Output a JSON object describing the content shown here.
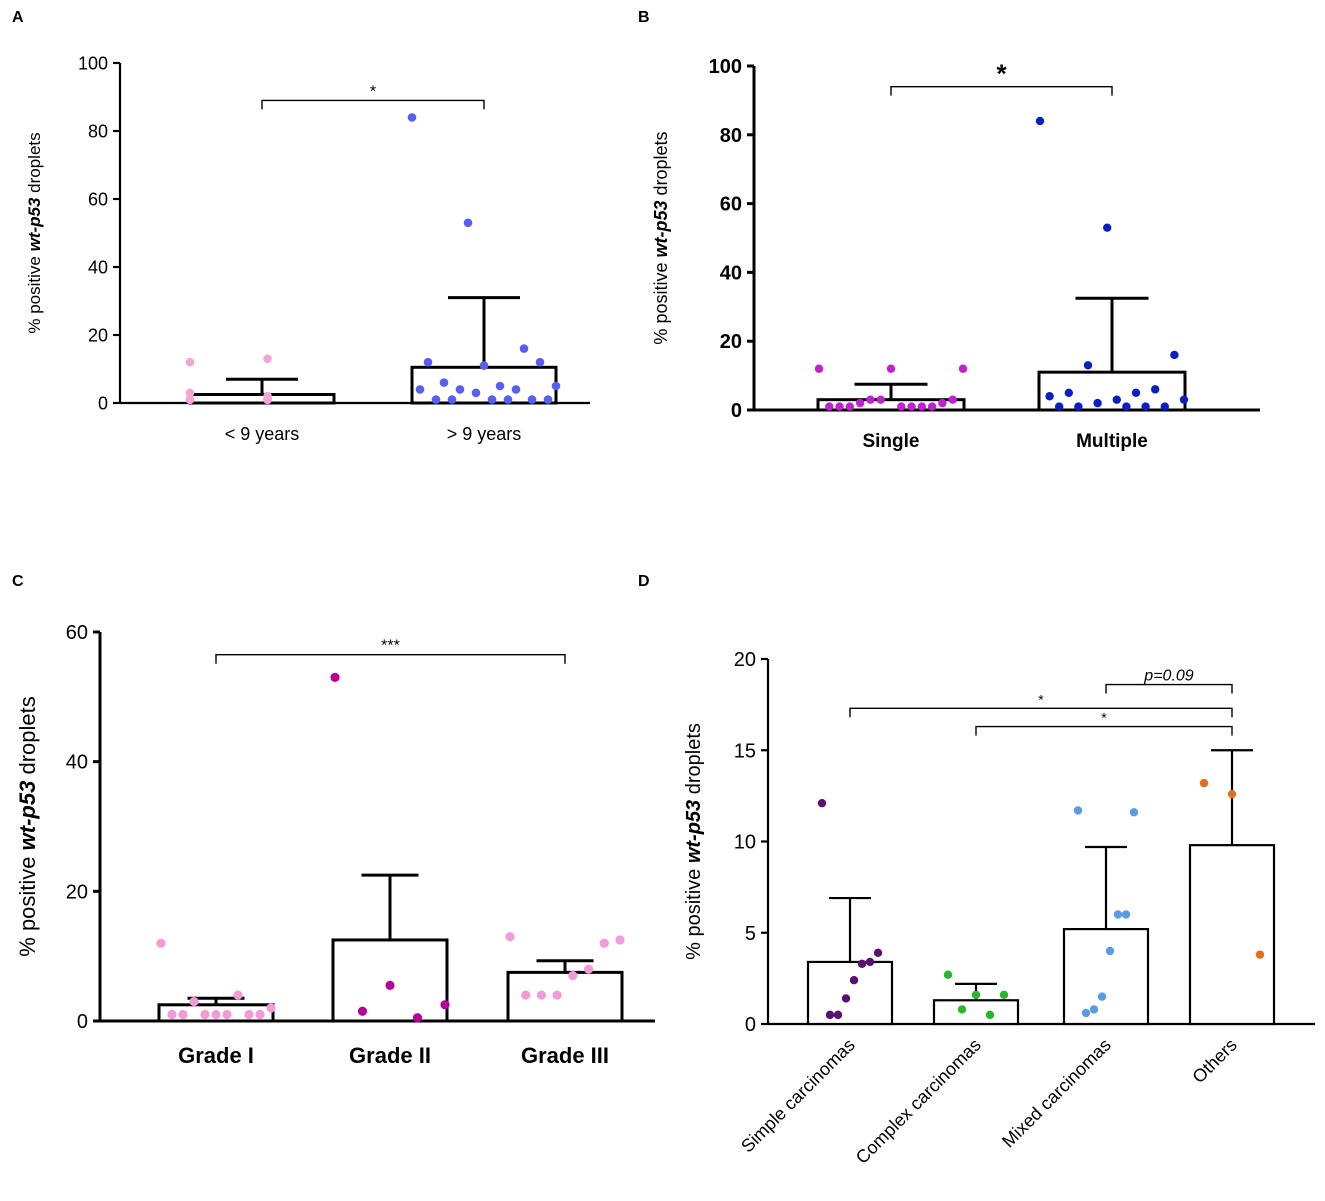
{
  "figure": {
    "colors": {
      "axis": "#000000",
      "bar_fill": "#ffffff",
      "pink_light": "#f2a6d8",
      "blue_med": "#5a5ef0",
      "magenta": "#c020d0",
      "navy": "#0a1fc0",
      "pink_grade": "#f39ad8",
      "magenta_dark": "#b8009a",
      "purple_dark": "#5a1070",
      "green": "#2bb52b",
      "blue_light": "#5b9be0",
      "orange": "#e07020"
    }
  },
  "chart_data": [
    {
      "panel": "A",
      "type": "bar",
      "title": "",
      "ylabel_pre": "% positive ",
      "ylabel_em": "wt-p53",
      "ylabel_post": " droplets",
      "ylim": [
        0,
        100
      ],
      "yticks": [
        "0",
        "20",
        "40",
        "60",
        "80",
        "100"
      ],
      "categories": [
        "< 9 years",
        "> 9 years"
      ],
      "values": [
        2.5,
        10.5
      ],
      "errors": [
        7,
        31
      ],
      "points": [
        [
          12,
          13,
          3,
          2,
          1,
          1,
          1,
          1,
          1,
          1,
          1,
          1,
          1,
          1
        ],
        [
          84,
          53,
          16,
          12,
          11,
          12,
          6,
          5,
          5,
          4,
          4,
          4,
          3,
          1,
          1,
          1,
          1,
          1,
          1
        ]
      ],
      "point_colors": [
        "#f2a6d8",
        "#5a5ef0"
      ],
      "brackets": [
        {
          "from": 0,
          "to": 1,
          "label": "*",
          "level": 89
        }
      ]
    },
    {
      "panel": "B",
      "type": "bar",
      "title": "",
      "ylabel_pre": "% positive ",
      "ylabel_em": "wt-p53",
      "ylabel_post": " droplets",
      "ylim": [
        0,
        100
      ],
      "yticks": [
        "0",
        "20",
        "40",
        "60",
        "80",
        "100"
      ],
      "categories": [
        "Single",
        "Multiple"
      ],
      "values": [
        3,
        11
      ],
      "errors": [
        7.5,
        32.5
      ],
      "points": [
        [
          12,
          12,
          12,
          3,
          3,
          3,
          2,
          2,
          1,
          1,
          1,
          1,
          1,
          1,
          1
        ],
        [
          84,
          53,
          16,
          13,
          6,
          5,
          5,
          4,
          3,
          3,
          2,
          1,
          1,
          1,
          1,
          1
        ]
      ],
      "point_colors": [
        "#c020d0",
        "#0a1fc0"
      ],
      "brackets": [
        {
          "from": 0,
          "to": 1,
          "label": "*",
          "level": 94
        }
      ]
    },
    {
      "panel": "C",
      "type": "bar",
      "title": "",
      "ylabel_pre": "% positive ",
      "ylabel_em": "wt-p53",
      "ylabel_post": " droplets",
      "ylim": [
        0,
        60
      ],
      "yticks": [
        "0",
        "20",
        "40",
        "60"
      ],
      "categories": [
        "Grade I",
        "Grade II",
        "Grade III"
      ],
      "values": [
        2.5,
        12.5,
        7.5
      ],
      "errors": [
        3.5,
        22.5,
        9.3
      ],
      "points": [
        [
          12,
          4,
          3,
          2,
          1,
          1,
          1,
          1,
          1,
          1,
          1
        ],
        [
          53,
          5.5,
          2.5,
          1.5,
          0.5
        ],
        [
          13,
          12.5,
          12,
          8,
          7,
          4,
          4,
          4
        ]
      ],
      "point_colors": [
        "#f39ad8",
        "#b8009a",
        "#f39ad8"
      ],
      "brackets": [
        {
          "from": 0,
          "to": 2,
          "label": "***",
          "level": 56.5
        }
      ]
    },
    {
      "panel": "D",
      "type": "bar",
      "title": "",
      "ylabel_pre": "% positive ",
      "ylabel_em": "wt-p53",
      "ylabel_post": " droplets",
      "ylim": [
        0,
        20
      ],
      "yticks": [
        "0",
        "5",
        "10",
        "15",
        "20"
      ],
      "categories": [
        "Simple carcinomas",
        "Complex carcinomas",
        "Mixed carcinomas",
        "Others"
      ],
      "values": [
        3.4,
        1.3,
        5.2,
        9.8
      ],
      "errors": [
        6.9,
        2.2,
        9.7,
        15
      ],
      "points": [
        [
          12.1,
          3.9,
          3.4,
          3.3,
          2.4,
          1.4,
          0.5,
          0.5
        ],
        [
          2.7,
          1.6,
          1.6,
          0.8,
          0.5
        ],
        [
          11.7,
          11.6,
          6,
          6,
          4,
          1.5,
          0.8,
          0.6
        ],
        [
          13.2,
          12.6,
          3.8
        ]
      ],
      "point_colors": [
        "#5a1070",
        "#2bb52b",
        "#5b9be0",
        "#e07020"
      ],
      "brackets": [
        {
          "from": 2,
          "to": 3,
          "label": "p=0.09",
          "level": 18.6,
          "italic": true
        },
        {
          "from": 0,
          "to": 3,
          "label": "*",
          "level": 17.3
        },
        {
          "from": 1,
          "to": 3,
          "label": "*",
          "level": 16.3
        }
      ]
    }
  ]
}
